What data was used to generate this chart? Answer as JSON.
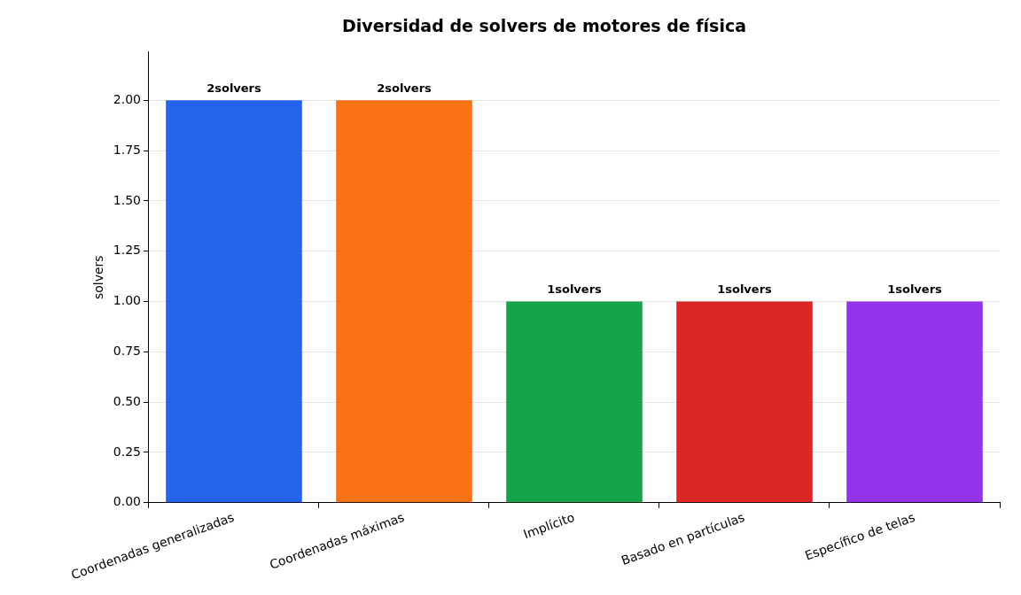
{
  "chart_data": {
    "type": "bar",
    "title": "Diversidad de solvers de motores de física",
    "ylabel": "solvers",
    "categories": [
      "Coordenadas generalizadas",
      "Coordenadas máximas",
      "Implícito",
      "Basado en partículas",
      "Específico de telas"
    ],
    "values": [
      2,
      2,
      1,
      1,
      1
    ],
    "colors": [
      "#2563eb",
      "#f97316",
      "#16a34a",
      "#dc2626",
      "#9333ea"
    ],
    "value_labels": [
      "2solvers",
      "2solvers",
      "1solvers",
      "1solvers",
      "1solvers"
    ],
    "ylim": [
      0,
      2.24
    ],
    "yticks": [
      {
        "value": 0,
        "label": "0.00"
      },
      {
        "value": 0.25,
        "label": "0.25"
      },
      {
        "value": 0.5,
        "label": "0.50"
      },
      {
        "value": 0.75,
        "label": "0.75"
      },
      {
        "value": 1,
        "label": "1.00"
      },
      {
        "value": 1.25,
        "label": "1.25"
      },
      {
        "value": 1.5,
        "label": "1.50"
      },
      {
        "value": 1.75,
        "label": "1.75"
      },
      {
        "value": 2,
        "label": "2.00"
      }
    ],
    "grid": "y"
  }
}
